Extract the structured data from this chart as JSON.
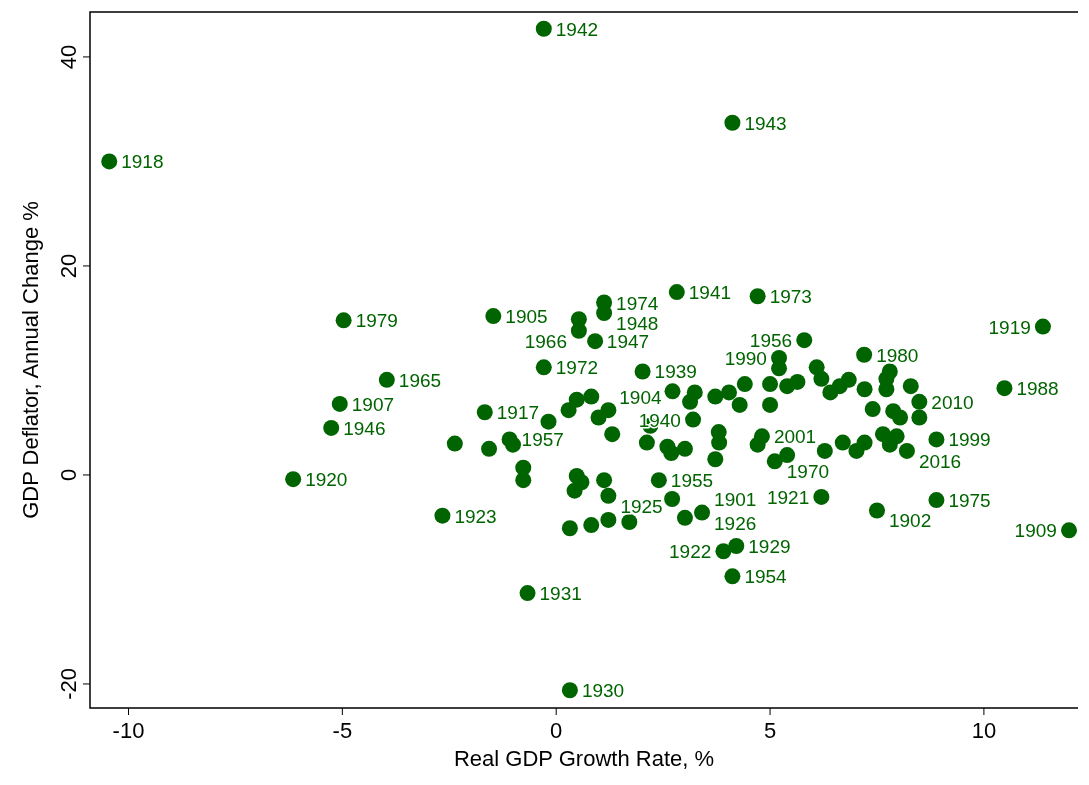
{
  "chart_data": {
    "type": "scatter",
    "xlabel": "Real GDP Growth Rate, %",
    "ylabel": "GDP Deflator, Annual Change %",
    "xlim": [
      -10.9,
      12.2
    ],
    "ylim": [
      -22.3,
      44.3
    ],
    "xticks": [
      -10,
      -5,
      0,
      5,
      10
    ],
    "yticks": [
      -20,
      0,
      20,
      40
    ],
    "marker": "circle",
    "series": [
      {
        "color": "#006400",
        "x": [
          -0.29,
          4.12,
          -10.45,
          11.38,
          11.99,
          -4.97,
          -1.47,
          1.12,
          1.12,
          2.82,
          4.71,
          0.53,
          0.53,
          0.91,
          -3.96,
          -5.06,
          -5.26,
          -6.15,
          -0.29,
          2.02,
          -1.67,
          -2.66,
          -0.67,
          0.32,
          4.12,
          4.21,
          3.91,
          6.2,
          7.5,
          8.89,
          10.48,
          5.8,
          7.2,
          5.21,
          2.4,
          2.71,
          3.41,
          1.22,
          0.82,
          3.2,
          5.11,
          8.89,
          8.49,
          8.2,
          0.29,
          0.48,
          0.99,
          1.22,
          -0.18,
          1.31,
          2.2,
          2.12,
          2.6,
          2.69,
          3.01,
          2.72,
          3.13,
          3.24,
          3.72,
          4.04,
          4.41,
          4.29,
          3.8,
          3.81,
          3.72,
          4.71,
          4.81,
          5.0,
          5.0,
          5.21,
          5.4,
          5.64,
          5.4,
          6.09,
          6.2,
          6.41,
          6.63,
          6.84,
          6.28,
          6.7,
          7.02,
          7.21,
          7.21,
          7.4,
          7.72,
          7.8,
          7.72,
          7.88,
          8.04,
          8.29,
          7.64,
          7.96,
          7.8,
          8.49,
          -1.09,
          -1.01,
          -1.57,
          -2.37,
          -0.77,
          -0.77,
          0.48,
          0.59,
          0.43,
          1.12,
          0.32,
          0.82,
          1.22,
          1.71,
          3.01
        ],
        "values": [
          42.7,
          33.7,
          30.0,
          14.2,
          -5.3,
          14.8,
          15.2,
          16.5,
          15.5,
          17.5,
          17.1,
          13.8,
          14.9,
          12.8,
          9.1,
          6.8,
          4.5,
          -0.4,
          10.3,
          9.9,
          6.0,
          -3.9,
          -11.3,
          -20.6,
          -9.7,
          -6.8,
          -7.3,
          -2.1,
          -3.4,
          -2.4,
          8.3,
          12.9,
          11.5,
          11.2,
          -0.5,
          -2.3,
          -3.6,
          -2.0,
          7.5,
          5.3,
          1.3,
          3.4,
          7.0,
          2.3,
          6.2,
          7.2,
          5.5,
          6.2,
          5.1,
          3.9,
          4.7,
          3.1,
          2.7,
          2.1,
          2.5,
          8.0,
          7.0,
          7.9,
          7.5,
          7.9,
          8.7,
          6.7,
          4.1,
          3.1,
          1.5,
          2.9,
          3.7,
          8.7,
          6.7,
          10.2,
          8.5,
          8.9,
          1.9,
          10.3,
          9.2,
          7.9,
          8.5,
          9.1,
          2.3,
          3.1,
          2.3,
          3.1,
          8.2,
          6.3,
          9.2,
          9.9,
          8.2,
          6.1,
          5.5,
          8.5,
          3.9,
          3.7,
          2.9,
          5.5,
          3.4,
          2.9,
          2.5,
          3.0,
          0.7,
          -0.5,
          -0.1,
          -0.7,
          -1.5,
          -0.5,
          -5.1,
          -4.8,
          -4.3,
          -4.5,
          -4.1
        ]
      }
    ],
    "annotations": [
      {
        "text": "1942",
        "x": -0.29,
        "y": 42.7
      },
      {
        "text": "1943",
        "x": 4.12,
        "y": 33.7
      },
      {
        "text": "1918",
        "x": -10.45,
        "y": 30.0
      },
      {
        "text": "1919",
        "x": 11.38,
        "y": 14.2
      },
      {
        "text": "1909",
        "x": 11.99,
        "y": -5.3
      },
      {
        "text": "1979",
        "x": -4.97,
        "y": 14.8
      },
      {
        "text": "1905",
        "x": -1.47,
        "y": 15.2
      },
      {
        "text": "1974",
        "x": 1.12,
        "y": 16.5
      },
      {
        "text": "1948",
        "x": 1.12,
        "y": 15.5
      },
      {
        "text": "1941",
        "x": 2.82,
        "y": 17.5
      },
      {
        "text": "1973",
        "x": 4.71,
        "y": 17.1
      },
      {
        "text": "1947",
        "x": 0.53,
        "y": 13.8
      },
      {
        "text": "1966",
        "x": 0.91,
        "y": 12.8
      },
      {
        "text": "1965",
        "x": -3.96,
        "y": 9.1
      },
      {
        "text": "1907",
        "x": -5.06,
        "y": 6.8
      },
      {
        "text": "1946",
        "x": -5.26,
        "y": 4.5
      },
      {
        "text": "1920",
        "x": -6.15,
        "y": -0.4
      },
      {
        "text": "1972",
        "x": -0.29,
        "y": 10.3
      },
      {
        "text": "1939",
        "x": 2.02,
        "y": 9.9
      },
      {
        "text": "1917",
        "x": -1.67,
        "y": 6.0
      },
      {
        "text": "1923",
        "x": -2.66,
        "y": -3.9
      },
      {
        "text": "1931",
        "x": -0.67,
        "y": -11.3
      },
      {
        "text": "1930",
        "x": 0.32,
        "y": -20.6
      },
      {
        "text": "1954",
        "x": 4.12,
        "y": -9.7
      },
      {
        "text": "1929",
        "x": 4.21,
        "y": -6.8
      },
      {
        "text": "1922",
        "x": 3.91,
        "y": -7.3
      },
      {
        "text": "1921",
        "x": 6.2,
        "y": -2.1
      },
      {
        "text": "1902",
        "x": 7.5,
        "y": -3.4
      },
      {
        "text": "1975",
        "x": 8.89,
        "y": -2.4
      },
      {
        "text": "1988",
        "x": 10.48,
        "y": 8.3
      },
      {
        "text": "1956",
        "x": 5.8,
        "y": 12.9
      },
      {
        "text": "1980",
        "x": 7.2,
        "y": 11.5
      },
      {
        "text": "1990",
        "x": 5.21,
        "y": 11.2
      },
      {
        "text": "1955",
        "x": 2.4,
        "y": -0.5
      },
      {
        "text": "1901",
        "x": 2.71,
        "y": -2.3
      },
      {
        "text": "1926",
        "x": 3.41,
        "y": -3.6
      },
      {
        "text": "1925",
        "x": 1.22,
        "y": -2.0
      },
      {
        "text": "1904",
        "x": 0.82,
        "y": 7.5
      },
      {
        "text": "1940",
        "x": 3.2,
        "y": 5.3
      },
      {
        "text": "1970",
        "x": 5.11,
        "y": 1.3
      },
      {
        "text": "1999",
        "x": 8.89,
        "y": 3.4
      },
      {
        "text": "2010",
        "x": 8.49,
        "y": 7.0
      },
      {
        "text": "2016",
        "x": 8.2,
        "y": 2.3
      },
      {
        "text": "2001",
        "x": 4.81,
        "y": 3.7
      },
      {
        "text": "1957",
        "x": -1.09,
        "y": 3.4
      }
    ]
  }
}
